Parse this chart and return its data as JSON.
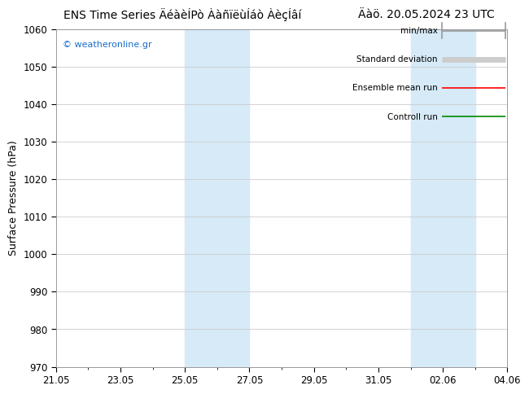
{
  "title_left": "ENS Time Series ÄéàèÏPò ÀàñïëùÍáò ÀèçÍâí",
  "title_right": "Äàö. 20.05.2024 23 UTC",
  "ylabel": "Surface Pressure (hPa)",
  "ylim": [
    970,
    1060
  ],
  "yticks": [
    970,
    980,
    990,
    1000,
    1010,
    1020,
    1030,
    1040,
    1050,
    1060
  ],
  "xtick_labels": [
    "21.05",
    "23.05",
    "25.05",
    "27.05",
    "29.05",
    "31.05",
    "02.06",
    "04.06"
  ],
  "xmin": 0,
  "xmax": 14,
  "shaded_bands": [
    {
      "xmin": 4.0,
      "xmax": 6.0
    },
    {
      "xmin": 11.0,
      "xmax": 13.0
    }
  ],
  "legend_items": [
    {
      "label": "min/max",
      "color": "#999999",
      "lw": 1.2,
      "style": "line_with_tick"
    },
    {
      "label": "Standard deviation",
      "color": "#cccccc",
      "lw": 5,
      "style": "line"
    },
    {
      "label": "Ensemble mean run",
      "color": "#ff0000",
      "lw": 1.2,
      "style": "line"
    },
    {
      "label": "Controll run",
      "color": "#008800",
      "lw": 1.2,
      "style": "line"
    }
  ],
  "watermark": "© weatheronline.gr",
  "watermark_color": "#1a6ecc",
  "background_color": "#ffffff",
  "plot_bg_color": "#ffffff",
  "shade_color": "#d6eaf8",
  "grid_color": "#cccccc",
  "title_fontsize": 10,
  "tick_fontsize": 8.5,
  "ylabel_fontsize": 9
}
